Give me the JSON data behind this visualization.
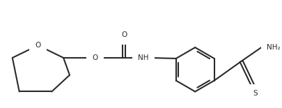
{
  "bg_color": "#ffffff",
  "line_color": "#2a2a2a",
  "line_width": 1.5,
  "figsize": [
    4.06,
    1.55
  ],
  "dpi": 100,
  "font_size": 7.5,
  "ring_O_label": "O",
  "ether_O_label": "O",
  "amide_O_label": "O",
  "NH_label": "NH",
  "NH2_label": "NH₂",
  "S_label": "S"
}
